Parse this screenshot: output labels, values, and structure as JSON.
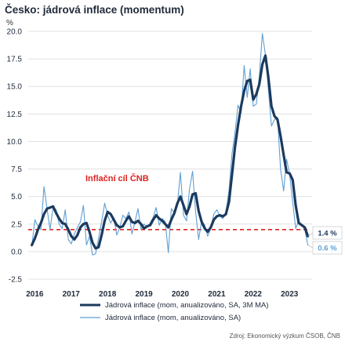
{
  "chart_data": {
    "type": "line",
    "title": "Česko: jádrová inflace (momentum)",
    "unit_label": "%",
    "ylim": [
      -2.5,
      20
    ],
    "yticks": [
      -2.5,
      0.0,
      2.5,
      5.0,
      7.5,
      10.0,
      12.5,
      15.0,
      17.5,
      20.0
    ],
    "ytick_labels": [
      "-2.5",
      "0.0",
      "2.5",
      "5.0",
      "7.5",
      "10.0",
      "12.5",
      "15.0",
      "17.5",
      "20.0"
    ],
    "xticks": [
      2016,
      2017,
      2018,
      2019,
      2020,
      2021,
      2022,
      2023
    ],
    "xtick_labels": [
      "2016",
      "2017",
      "2018",
      "2019",
      "2020",
      "2021",
      "2022",
      "2023"
    ],
    "xlim": [
      2015.9,
      2023.7
    ],
    "target": {
      "value": 2.0,
      "label": "Inflační cíl ČNB",
      "color": "#e02020"
    },
    "series": [
      {
        "name": "Jádrová inflace (mom, anualizováno, SA, 3M MA)",
        "color": "#1c3a5e",
        "end_label": "1.4 %",
        "points": [
          [
            2016.0,
            0.6
          ],
          [
            2016.083,
            1.2
          ],
          [
            2016.167,
            2.0
          ],
          [
            2016.25,
            2.6
          ],
          [
            2016.333,
            3.4
          ],
          [
            2016.417,
            3.9
          ],
          [
            2016.5,
            4.0
          ],
          [
            2016.583,
            4.1
          ],
          [
            2016.667,
            3.5
          ],
          [
            2016.75,
            3.0
          ],
          [
            2016.833,
            2.6
          ],
          [
            2016.917,
            2.5
          ],
          [
            2017.0,
            2.0
          ],
          [
            2017.083,
            1.4
          ],
          [
            2017.167,
            1.1
          ],
          [
            2017.25,
            1.5
          ],
          [
            2017.333,
            2.2
          ],
          [
            2017.417,
            2.5
          ],
          [
            2017.5,
            2.6
          ],
          [
            2017.583,
            1.8
          ],
          [
            2017.667,
            0.8
          ],
          [
            2017.75,
            0.3
          ],
          [
            2017.833,
            0.4
          ],
          [
            2017.917,
            1.5
          ],
          [
            2018.0,
            2.8
          ],
          [
            2018.083,
            3.6
          ],
          [
            2018.167,
            3.4
          ],
          [
            2018.25,
            2.9
          ],
          [
            2018.333,
            2.4
          ],
          [
            2018.417,
            2.2
          ],
          [
            2018.5,
            2.3
          ],
          [
            2018.583,
            2.8
          ],
          [
            2018.667,
            3.2
          ],
          [
            2018.75,
            2.7
          ],
          [
            2018.833,
            2.6
          ],
          [
            2018.917,
            2.8
          ],
          [
            2019.0,
            2.5
          ],
          [
            2019.083,
            2.1
          ],
          [
            2019.167,
            2.3
          ],
          [
            2019.25,
            2.4
          ],
          [
            2019.333,
            2.9
          ],
          [
            2019.417,
            3.3
          ],
          [
            2019.5,
            3.0
          ],
          [
            2019.583,
            2.8
          ],
          [
            2019.667,
            2.5
          ],
          [
            2019.75,
            2.2
          ],
          [
            2019.833,
            2.9
          ],
          [
            2019.917,
            3.5
          ],
          [
            2020.0,
            4.4
          ],
          [
            2020.083,
            5.0
          ],
          [
            2020.167,
            4.2
          ],
          [
            2020.25,
            3.4
          ],
          [
            2020.333,
            4.1
          ],
          [
            2020.417,
            5.2
          ],
          [
            2020.5,
            5.3
          ],
          [
            2020.583,
            3.7
          ],
          [
            2020.667,
            2.7
          ],
          [
            2020.75,
            2.1
          ],
          [
            2020.833,
            1.8
          ],
          [
            2020.917,
            2.2
          ],
          [
            2021.0,
            2.9
          ],
          [
            2021.083,
            3.2
          ],
          [
            2021.167,
            3.3
          ],
          [
            2021.25,
            3.2
          ],
          [
            2021.333,
            3.4
          ],
          [
            2021.417,
            4.5
          ],
          [
            2021.5,
            7.0
          ],
          [
            2021.583,
            9.5
          ],
          [
            2021.667,
            11.5
          ],
          [
            2021.75,
            13.2
          ],
          [
            2021.833,
            14.6
          ],
          [
            2021.917,
            15.5
          ],
          [
            2022.0,
            15.6
          ],
          [
            2022.083,
            13.8
          ],
          [
            2022.167,
            14.3
          ],
          [
            2022.25,
            15.2
          ],
          [
            2022.333,
            17.0
          ],
          [
            2022.417,
            17.8
          ],
          [
            2022.5,
            15.8
          ],
          [
            2022.583,
            13.2
          ],
          [
            2022.667,
            12.3
          ],
          [
            2022.75,
            12.0
          ],
          [
            2022.833,
            10.5
          ],
          [
            2022.917,
            8.8
          ],
          [
            2023.0,
            7.2
          ],
          [
            2023.083,
            7.1
          ],
          [
            2023.167,
            6.5
          ],
          [
            2023.25,
            4.2
          ],
          [
            2023.333,
            2.6
          ],
          [
            2023.417,
            2.4
          ],
          [
            2023.5,
            2.2
          ],
          [
            2023.583,
            1.4
          ]
        ]
      },
      {
        "name": "Jádrová inflace (mom, anualizováno, SA)",
        "color": "#5f9fd3",
        "end_label": "0.6 %",
        "points": [
          [
            2016.0,
            0.5
          ],
          [
            2016.083,
            2.9
          ],
          [
            2016.167,
            2.3
          ],
          [
            2016.25,
            2.0
          ],
          [
            2016.333,
            5.9
          ],
          [
            2016.417,
            3.9
          ],
          [
            2016.5,
            2.0
          ],
          [
            2016.583,
            4.0
          ],
          [
            2016.667,
            3.8
          ],
          [
            2016.75,
            2.5
          ],
          [
            2016.833,
            2.1
          ],
          [
            2016.917,
            3.8
          ],
          [
            2017.0,
            1.1
          ],
          [
            2017.083,
            0.7
          ],
          [
            2017.167,
            1.6
          ],
          [
            2017.25,
            2.2
          ],
          [
            2017.333,
            2.7
          ],
          [
            2017.417,
            4.2
          ],
          [
            2017.5,
            0.6
          ],
          [
            2017.583,
            1.4
          ],
          [
            2017.667,
            -0.3
          ],
          [
            2017.75,
            -0.2
          ],
          [
            2017.833,
            1.2
          ],
          [
            2017.917,
            2.7
          ],
          [
            2018.0,
            4.4
          ],
          [
            2018.083,
            3.3
          ],
          [
            2018.167,
            2.6
          ],
          [
            2018.25,
            3.1
          ],
          [
            2018.333,
            1.5
          ],
          [
            2018.417,
            2.2
          ],
          [
            2018.5,
            3.3
          ],
          [
            2018.583,
            3.0
          ],
          [
            2018.667,
            3.6
          ],
          [
            2018.75,
            1.6
          ],
          [
            2018.833,
            2.7
          ],
          [
            2018.917,
            3.9
          ],
          [
            2019.0,
            2.0
          ],
          [
            2019.083,
            2.5
          ],
          [
            2019.167,
            2.2
          ],
          [
            2019.25,
            2.6
          ],
          [
            2019.333,
            3.1
          ],
          [
            2019.417,
            4.0
          ],
          [
            2019.5,
            2.4
          ],
          [
            2019.583,
            3.0
          ],
          [
            2019.667,
            2.7
          ],
          [
            2019.75,
            -0.1
          ],
          [
            2019.833,
            3.9
          ],
          [
            2019.917,
            3.5
          ],
          [
            2020.0,
            4.3
          ],
          [
            2020.083,
            7.2
          ],
          [
            2020.167,
            3.3
          ],
          [
            2020.25,
            2.8
          ],
          [
            2020.333,
            5.7
          ],
          [
            2020.417,
            7.3
          ],
          [
            2020.5,
            3.6
          ],
          [
            2020.583,
            1.1
          ],
          [
            2020.667,
            2.8
          ],
          [
            2020.75,
            2.4
          ],
          [
            2020.833,
            1.4
          ],
          [
            2020.917,
            2.1
          ],
          [
            2021.0,
            3.4
          ],
          [
            2021.083,
            3.8
          ],
          [
            2021.167,
            3.2
          ],
          [
            2021.25,
            3.0
          ],
          [
            2021.333,
            3.6
          ],
          [
            2021.417,
            5.5
          ],
          [
            2021.5,
            8.9
          ],
          [
            2021.583,
            10.8
          ],
          [
            2021.667,
            13.3
          ],
          [
            2021.75,
            12.6
          ],
          [
            2021.833,
            16.9
          ],
          [
            2021.917,
            14.0
          ],
          [
            2022.0,
            16.6
          ],
          [
            2022.083,
            13.2
          ],
          [
            2022.167,
            13.4
          ],
          [
            2022.25,
            15.9
          ],
          [
            2022.333,
            19.8
          ],
          [
            2022.417,
            17.9
          ],
          [
            2022.5,
            14.7
          ],
          [
            2022.583,
            11.4
          ],
          [
            2022.667,
            12.0
          ],
          [
            2022.75,
            12.2
          ],
          [
            2022.833,
            7.5
          ],
          [
            2022.917,
            5.5
          ],
          [
            2023.0,
            8.4
          ],
          [
            2023.083,
            7.0
          ],
          [
            2023.167,
            4.5
          ],
          [
            2023.25,
            2.1
          ],
          [
            2023.333,
            2.8
          ],
          [
            2023.417,
            2.4
          ],
          [
            2023.5,
            2.0
          ],
          [
            2023.583,
            0.6
          ]
        ]
      }
    ],
    "source": "Zdroj: Ekonomický výzkum ČSOB, ČNB"
  }
}
